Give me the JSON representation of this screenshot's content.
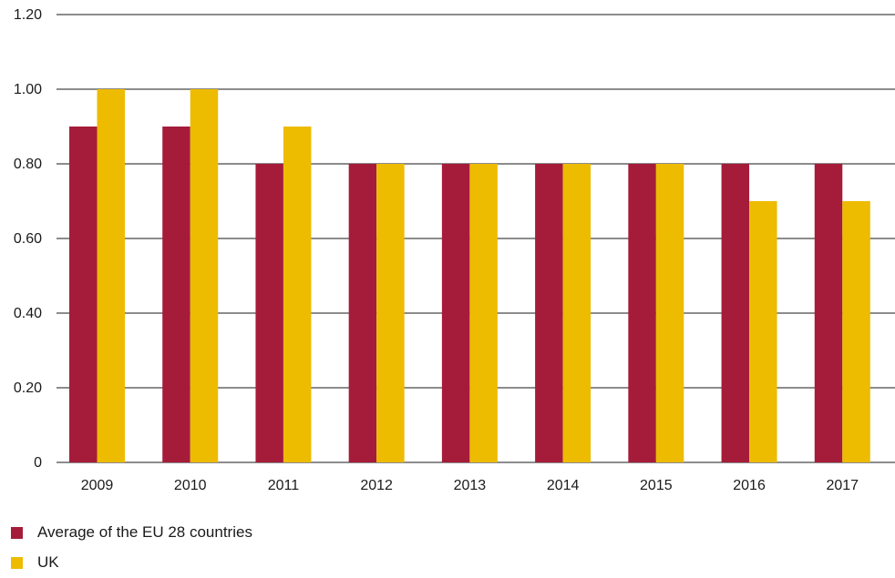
{
  "chart_data": {
    "type": "bar",
    "categories": [
      "2009",
      "2010",
      "2011",
      "2012",
      "2013",
      "2014",
      "2015",
      "2016",
      "2017"
    ],
    "series": [
      {
        "name": "Average of the EU 28 countries",
        "values": [
          0.9,
          0.9,
          0.8,
          0.8,
          0.8,
          0.8,
          0.8,
          0.8,
          0.8
        ],
        "color": "#A51C3A"
      },
      {
        "name": "UK",
        "values": [
          1.0,
          1.0,
          0.9,
          0.8,
          0.8,
          0.8,
          0.8,
          0.7,
          0.7
        ],
        "color": "#EDBB00"
      }
    ],
    "yticks": [
      "0",
      "0.20",
      "0.40",
      "0.60",
      "0.80",
      "1.00",
      "1.20"
    ],
    "ylim": [
      0,
      1.2
    ],
    "grid": true,
    "legend_position": "bottom-left",
    "title": "",
    "xlabel": "",
    "ylabel": ""
  }
}
